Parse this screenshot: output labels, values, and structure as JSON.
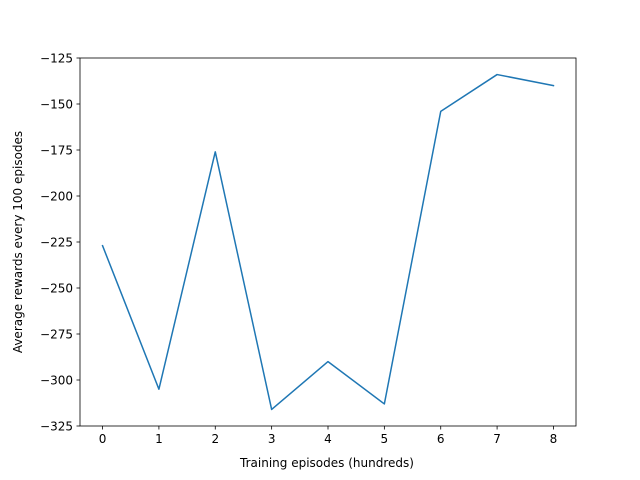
{
  "chart_data": {
    "type": "line",
    "title": "",
    "xlabel": "Training episodes (hundreds)",
    "ylabel": "Average rewards every 100 episodes",
    "xlim": [
      -0.4,
      8.4
    ],
    "ylim": [
      -325,
      -125
    ],
    "x_ticks": [
      0,
      1,
      2,
      3,
      4,
      5,
      6,
      7,
      8
    ],
    "y_ticks": [
      -125,
      -150,
      -175,
      -200,
      -225,
      -250,
      -275,
      -300,
      -325
    ],
    "x_tick_labels": [
      "0",
      "1",
      "2",
      "3",
      "4",
      "5",
      "6",
      "7",
      "8"
    ],
    "y_tick_labels": [
      "−125",
      "−150",
      "−175",
      "−200",
      "−225",
      "−250",
      "−275",
      "−300",
      "−325"
    ],
    "grid": false,
    "legend": "none",
    "series": [
      {
        "color": "#1f77b4",
        "x": [
          0,
          1,
          2,
          3,
          4,
          5,
          6,
          7,
          8
        ],
        "values": [
          -227,
          -305,
          -176,
          -316,
          -290,
          -313,
          -154,
          -134,
          -140
        ]
      }
    ]
  }
}
